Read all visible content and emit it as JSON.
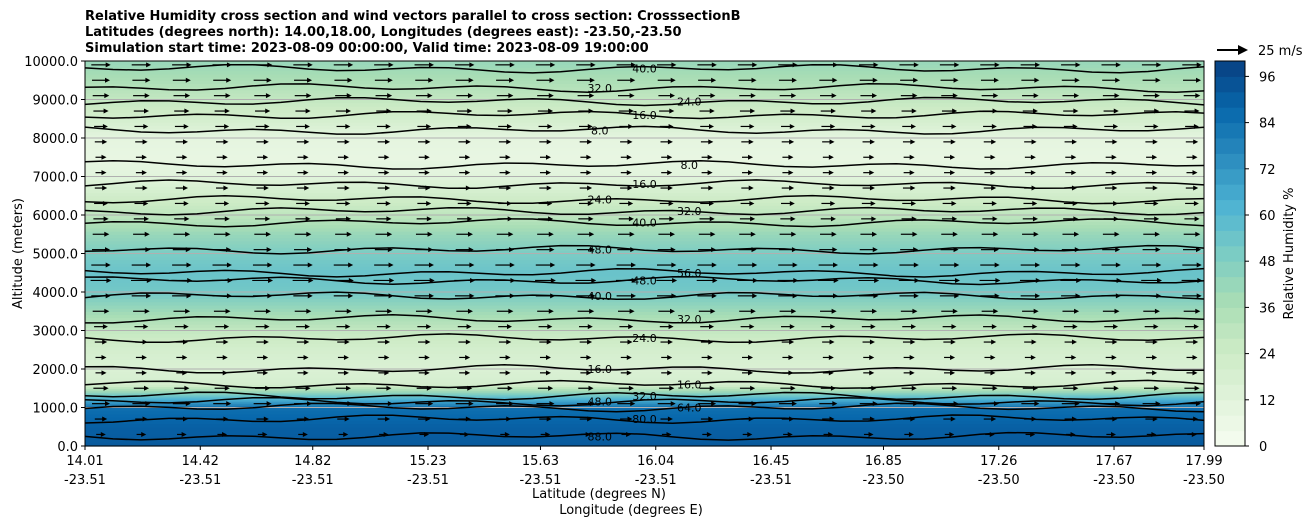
{
  "title": {
    "line1": "Relative Humidity cross section and wind vectors parallel to cross section: CrosssectionB",
    "line2": "Latitudes (degrees north): 14.00,18.00, Longitudes (degrees east): -23.50,-23.50",
    "line3": "Simulation start time: 2023-08-09 00:00:00, Valid time: 2023-08-09 19:00:00"
  },
  "chart_data": {
    "type": "heatmap",
    "description_free": true,
    "ylabel": "Altitude (meters)",
    "xlabel_line1": "Latitude (degrees N)",
    "xlabel_line2": "Longitude (degrees E)",
    "ylim": [
      0,
      10000
    ],
    "y_ticks": [
      "0.0",
      "1000.0",
      "2000.0",
      "3000.0",
      "4000.0",
      "5000.0",
      "6000.0",
      "7000.0",
      "8000.0",
      "9000.0",
      "10000.0"
    ],
    "y_tick_values": [
      0,
      1000,
      2000,
      3000,
      4000,
      5000,
      6000,
      7000,
      8000,
      9000,
      10000
    ],
    "x_ticks": [
      {
        "lat": "14.01",
        "lon": "-23.51"
      },
      {
        "lat": "14.42",
        "lon": "-23.51"
      },
      {
        "lat": "14.82",
        "lon": "-23.51"
      },
      {
        "lat": "15.23",
        "lon": "-23.51"
      },
      {
        "lat": "15.63",
        "lon": "-23.51"
      },
      {
        "lat": "16.04",
        "lon": "-23.51"
      },
      {
        "lat": "16.45",
        "lon": "-23.51"
      },
      {
        "lat": "16.85",
        "lon": "-23.50"
      },
      {
        "lat": "17.26",
        "lon": "-23.50"
      },
      {
        "lat": "17.67",
        "lon": "-23.50"
      },
      {
        "lat": "17.99",
        "lon": "-23.50"
      }
    ],
    "x_tick_values": [
      14.01,
      14.42,
      14.82,
      15.23,
      15.63,
      16.04,
      16.45,
      16.85,
      17.26,
      17.67,
      17.99
    ],
    "xlim": [
      14.01,
      17.99
    ],
    "grid": "horizontal",
    "colorbar": {
      "label": "Relative Humidity %",
      "range": [
        0,
        100
      ],
      "ticks": [
        "0",
        "12",
        "24",
        "36",
        "48",
        "60",
        "72",
        "84",
        "96"
      ],
      "tick_values": [
        0,
        12,
        24,
        36,
        48,
        60,
        72,
        84,
        96
      ],
      "colormap": "GnBu"
    },
    "quiver_key": "25 m/s",
    "humidity_profile": [
      {
        "alt": 0,
        "rh": 92
      },
      {
        "alt": 500,
        "rh": 90
      },
      {
        "alt": 1000,
        "rh": 85
      },
      {
        "alt": 1300,
        "rh": 55
      },
      {
        "alt": 1600,
        "rh": 20
      },
      {
        "alt": 2000,
        "rh": 16
      },
      {
        "alt": 2500,
        "rh": 20
      },
      {
        "alt": 3000,
        "rh": 28
      },
      {
        "alt": 3500,
        "rh": 40
      },
      {
        "alt": 4000,
        "rh": 52
      },
      {
        "alt": 4500,
        "rh": 55
      },
      {
        "alt": 5000,
        "rh": 50
      },
      {
        "alt": 5500,
        "rh": 42
      },
      {
        "alt": 6000,
        "rh": 30
      },
      {
        "alt": 6500,
        "rh": 22
      },
      {
        "alt": 7000,
        "rh": 12
      },
      {
        "alt": 7500,
        "rh": 8
      },
      {
        "alt": 8000,
        "rh": 10
      },
      {
        "alt": 8500,
        "rh": 20
      },
      {
        "alt": 9000,
        "rh": 28
      },
      {
        "alt": 9500,
        "rh": 36
      },
      {
        "alt": 10000,
        "rh": 42
      }
    ],
    "contours": [
      {
        "level": "88.0",
        "alt": 250
      },
      {
        "level": "80.0",
        "alt": 700
      },
      {
        "level": "64.0",
        "alt": 1000
      },
      {
        "level": "48.0",
        "alt": 1150
      },
      {
        "level": "32.0",
        "alt": 1300
      },
      {
        "level": "16.0",
        "alt": 1600
      },
      {
        "level": "16.0",
        "alt": 2000
      },
      {
        "level": "24.0",
        "alt": 2800
      },
      {
        "level": "32.0",
        "alt": 3300
      },
      {
        "level": "40.0",
        "alt": 3900
      },
      {
        "level": "48.0",
        "alt": 4300
      },
      {
        "level": "56.0",
        "alt": 4500
      },
      {
        "level": "48.0",
        "alt": 5100
      },
      {
        "level": "40.0",
        "alt": 5800
      },
      {
        "level": "32.0",
        "alt": 6100
      },
      {
        "level": "24.0",
        "alt": 6400
      },
      {
        "level": "16.0",
        "alt": 6800
      },
      {
        "level": "8.0",
        "alt": 7300
      },
      {
        "level": "8.0",
        "alt": 8200
      },
      {
        "level": "16.0",
        "alt": 8600
      },
      {
        "level": "24.0",
        "alt": 8950
      },
      {
        "level": "32.0",
        "alt": 9300
      },
      {
        "level": "40.0",
        "alt": 9800
      }
    ],
    "wind_rows": [
      {
        "alt": 300,
        "u": 4
      },
      {
        "alt": 700,
        "u": 6
      },
      {
        "alt": 1100,
        "u": 10
      },
      {
        "alt": 1500,
        "u": 8
      },
      {
        "alt": 1900,
        "u": 5
      },
      {
        "alt": 2300,
        "u": 5
      },
      {
        "alt": 2700,
        "u": 6
      },
      {
        "alt": 3100,
        "u": 7
      },
      {
        "alt": 3500,
        "u": 9
      },
      {
        "alt": 3900,
        "u": 11
      },
      {
        "alt": 4300,
        "u": 12
      },
      {
        "alt": 4700,
        "u": 11
      },
      {
        "alt": 5100,
        "u": 10
      },
      {
        "alt": 5500,
        "u": 9
      },
      {
        "alt": 5900,
        "u": 8
      },
      {
        "alt": 6300,
        "u": 7
      },
      {
        "alt": 6700,
        "u": 6
      },
      {
        "alt": 7100,
        "u": 5
      },
      {
        "alt": 7500,
        "u": 5
      },
      {
        "alt": 7900,
        "u": 6
      },
      {
        "alt": 8300,
        "u": 7
      },
      {
        "alt": 8700,
        "u": 8
      },
      {
        "alt": 9100,
        "u": 9
      },
      {
        "alt": 9500,
        "u": 10
      },
      {
        "alt": 9900,
        "u": 11
      }
    ]
  }
}
